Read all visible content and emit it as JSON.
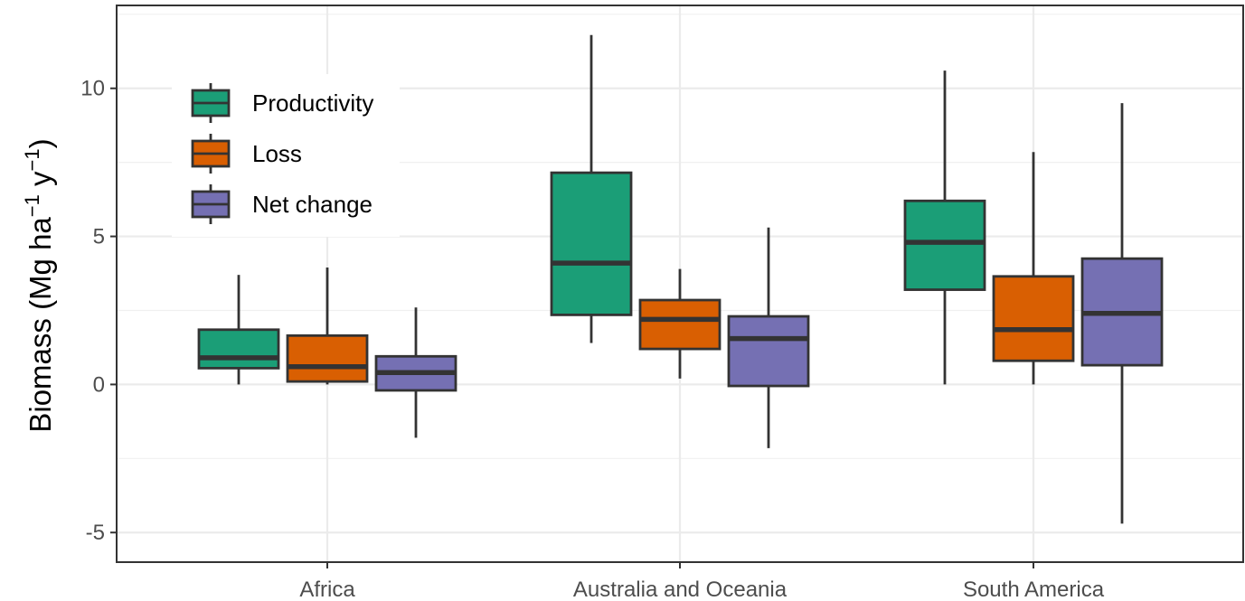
{
  "chart_data": {
    "type": "boxplot",
    "categories": [
      "Africa",
      "Australia and Oceania",
      "South America"
    ],
    "ylabel": {
      "main": "Biomass (Mg ha",
      "exp1": "−1",
      "mid": " y",
      "exp2": "−1",
      "end": ")"
    },
    "ylim": [
      -6.0,
      12.8
    ],
    "yticks": [
      -5,
      0,
      5,
      10
    ],
    "ytick_labels": [
      "-5",
      "0",
      "5",
      "10"
    ],
    "grid": true,
    "legend": {
      "placement": "top-left"
    },
    "series": [
      {
        "name": "Productivity",
        "color": "#1b9e77",
        "boxes": [
          {
            "min": 0.0,
            "q1": 0.55,
            "median": 0.9,
            "q3": 1.85,
            "max": 3.7
          },
          {
            "min": 1.4,
            "q1": 2.35,
            "median": 4.1,
            "q3": 7.15,
            "max": 11.8
          },
          {
            "min": 0.0,
            "q1": 3.2,
            "median": 4.8,
            "q3": 6.2,
            "max": 10.6
          }
        ]
      },
      {
        "name": "Loss",
        "color": "#d95f02",
        "boxes": [
          {
            "min": 0.0,
            "q1": 0.1,
            "median": 0.6,
            "q3": 1.65,
            "max": 3.95
          },
          {
            "min": 0.2,
            "q1": 1.2,
            "median": 2.2,
            "q3": 2.85,
            "max": 3.9
          },
          {
            "min": 0.0,
            "q1": 0.8,
            "median": 1.85,
            "q3": 3.65,
            "max": 7.85
          }
        ]
      },
      {
        "name": "Net change",
        "color": "#7570b3",
        "boxes": [
          {
            "min": -1.8,
            "q1": -0.2,
            "median": 0.4,
            "q3": 0.95,
            "max": 2.6
          },
          {
            "min": -2.15,
            "q1": -0.05,
            "median": 1.55,
            "q3": 2.3,
            "max": 5.3
          },
          {
            "min": -4.7,
            "q1": 0.65,
            "median": 2.4,
            "q3": 4.25,
            "max": 9.5
          }
        ]
      }
    ]
  }
}
